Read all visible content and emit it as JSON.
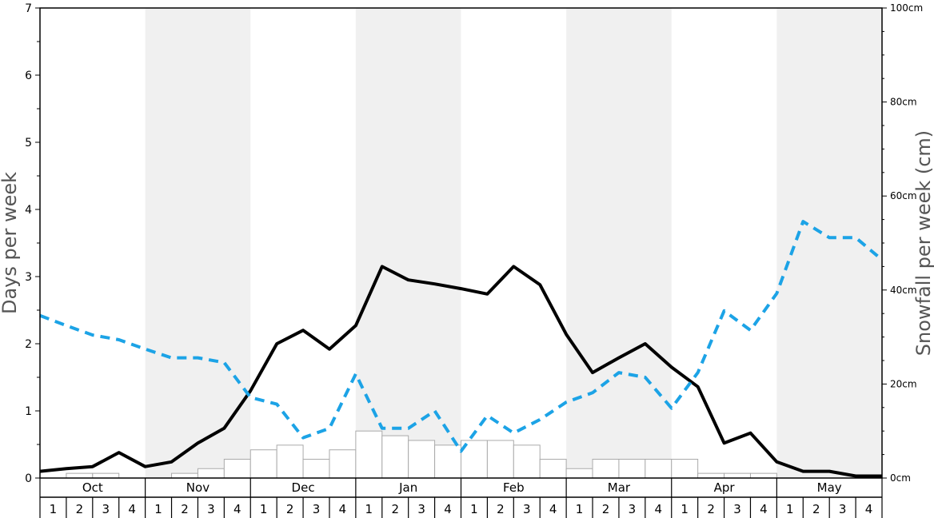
{
  "chart_data": {
    "type": "line",
    "ylabel_left": "Days per week",
    "ylabel_right": "Snowfall per week (cm)",
    "ylim_left": [
      0,
      7
    ],
    "ylim_right": [
      0,
      100
    ],
    "left_ticks": [
      "0",
      "1",
      "2",
      "3",
      "4",
      "5",
      "6",
      "7"
    ],
    "right_ticks": [
      "0cm",
      "20cm",
      "40cm",
      "60cm",
      "80cm",
      "100cm"
    ],
    "months": [
      "Oct",
      "Nov",
      "Dec",
      "Jan",
      "Feb",
      "Mar",
      "Apr",
      "May"
    ],
    "weeks": [
      "1",
      "2",
      "3",
      "4"
    ],
    "shaded_months": [
      "Nov",
      "Jan",
      "Mar",
      "May"
    ],
    "series": [
      {
        "kind": "line",
        "axis": "left",
        "color": "#000000",
        "style": "solid",
        "values": [
          0.1,
          0.14,
          0.17,
          0.38,
          0.17,
          0.24,
          0.52,
          0.74,
          1.3,
          2.0,
          2.2,
          1.92,
          2.27,
          3.15,
          2.95,
          2.89,
          2.82,
          2.74,
          3.15,
          2.88,
          2.14,
          1.57,
          1.79,
          2.0,
          1.65,
          1.36,
          0.52,
          0.67,
          0.24,
          0.1,
          0.1,
          0.03,
          0.03
        ]
      },
      {
        "kind": "line",
        "axis": "left",
        "color": "#1ca3e6",
        "style": "dashed",
        "values": [
          2.42,
          2.27,
          2.13,
          2.06,
          1.92,
          1.79,
          1.79,
          1.72,
          1.2,
          1.1,
          0.6,
          0.74,
          1.55,
          0.74,
          0.74,
          1.0,
          0.4,
          0.93,
          0.67,
          0.87,
          1.13,
          1.27,
          1.57,
          1.5,
          1.04,
          1.57,
          2.49,
          2.2,
          2.75,
          3.82,
          3.58,
          3.58,
          3.25
        ]
      },
      {
        "kind": "bar",
        "axis": "right",
        "color": "#ffffff",
        "values": [
          0,
          1,
          1,
          0,
          0,
          1,
          2,
          4,
          6,
          7,
          4,
          6,
          10,
          9,
          8,
          7,
          8,
          8,
          7,
          4,
          2,
          4,
          4,
          4,
          4,
          1,
          1,
          1,
          0,
          0,
          0,
          0
        ]
      }
    ]
  }
}
